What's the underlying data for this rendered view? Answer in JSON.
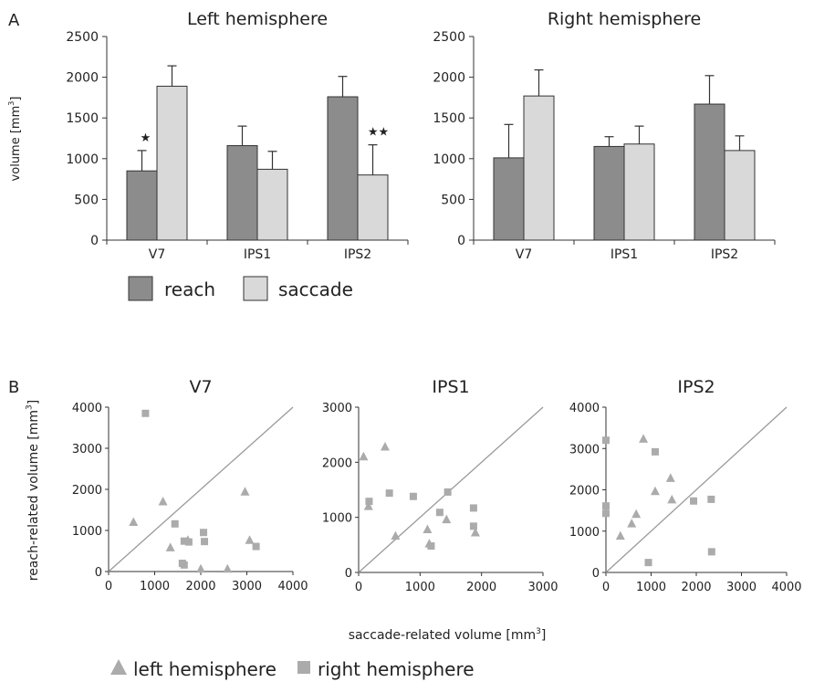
{
  "panel_labels": {
    "a": "A",
    "b": "B"
  },
  "colors": {
    "reach": "#8c8c8c",
    "saccade": "#d9d9d9",
    "marker": "#ababab",
    "diagonal": "#9a9a9a",
    "axis": "#333333"
  },
  "legend_a": {
    "reach": "reach",
    "saccade": "saccade"
  },
  "legend_b": {
    "left": "left hemisphere",
    "right": "right hemisphere",
    "left_icon": "triangle-icon",
    "right_icon": "square-icon"
  },
  "shared_xlabel": {
    "text": "saccade-related volume [mm",
    "sup": "3",
    "end": "]"
  },
  "chart_data": [
    {
      "id": "left-hemisphere",
      "type": "bar",
      "title": "Left hemisphere",
      "ylabel": {
        "text": "volume [mm",
        "sup": "3",
        "end": "]"
      },
      "ylim": [
        0,
        2500
      ],
      "yticks": [
        0,
        500,
        1000,
        1500,
        2000,
        2500
      ],
      "categories": [
        "V7",
        "IPS1",
        "IPS2"
      ],
      "series": [
        {
          "name": "reach",
          "values": [
            850,
            1160,
            1760
          ],
          "errors": [
            250,
            240,
            250
          ]
        },
        {
          "name": "saccade",
          "values": [
            1890,
            870,
            800
          ],
          "errors": [
            250,
            220,
            370
          ]
        }
      ],
      "annotations": [
        {
          "category": "V7",
          "series": "reach",
          "text": "★"
        },
        {
          "category": "IPS2",
          "series": "saccade",
          "text": "★★"
        }
      ]
    },
    {
      "id": "right-hemisphere",
      "type": "bar",
      "title": "Right hemisphere",
      "ylim": [
        0,
        2500
      ],
      "yticks": [
        0,
        500,
        1000,
        1500,
        2000,
        2500
      ],
      "categories": [
        "V7",
        "IPS1",
        "IPS2"
      ],
      "series": [
        {
          "name": "reach",
          "values": [
            1010,
            1150,
            1670
          ],
          "errors": [
            410,
            120,
            350
          ]
        },
        {
          "name": "saccade",
          "values": [
            1770,
            1180,
            1100
          ],
          "errors": [
            320,
            220,
            180
          ]
        }
      ]
    },
    {
      "id": "scatter-v7",
      "type": "scatter",
      "title": "V7",
      "ylabel": {
        "text": "reach-related volume [mm",
        "sup": "3",
        "end": "]"
      },
      "xlim": [
        0,
        4000
      ],
      "ylim": [
        0,
        4000
      ],
      "xticks": [
        0,
        1000,
        2000,
        3000,
        4000
      ],
      "yticks": [
        0,
        1000,
        2000,
        3000,
        4000
      ],
      "diagonal": true,
      "series": [
        {
          "name": "left hemisphere",
          "marker": "triangle",
          "points": [
            [
              540,
              1200
            ],
            [
              1180,
              1700
            ],
            [
              1340,
              580
            ],
            [
              1720,
              760
            ],
            [
              2000,
              60
            ],
            [
              2580,
              60
            ],
            [
              2960,
              1940
            ],
            [
              3060,
              760
            ]
          ]
        },
        {
          "name": "right hemisphere",
          "marker": "square",
          "points": [
            [
              800,
              3850
            ],
            [
              1440,
              1160
            ],
            [
              1600,
              200
            ],
            [
              1640,
              160
            ],
            [
              1640,
              740
            ],
            [
              1740,
              720
            ],
            [
              2060,
              950
            ],
            [
              2080,
              730
            ],
            [
              3200,
              610
            ]
          ]
        }
      ]
    },
    {
      "id": "scatter-ips1",
      "type": "scatter",
      "title": "IPS1",
      "xlim": [
        0,
        3000
      ],
      "ylim": [
        0,
        3000
      ],
      "xticks": [
        0,
        1000,
        2000,
        3000
      ],
      "yticks": [
        0,
        1000,
        2000,
        3000
      ],
      "diagonal": true,
      "series": [
        {
          "name": "left hemisphere",
          "marker": "triangle",
          "points": [
            [
              80,
              2100
            ],
            [
              160,
              1200
            ],
            [
              430,
              2280
            ],
            [
              600,
              660
            ],
            [
              1120,
              780
            ],
            [
              1150,
              520
            ],
            [
              1430,
              960
            ],
            [
              1900,
              720
            ]
          ]
        },
        {
          "name": "right hemisphere",
          "marker": "square",
          "points": [
            [
              170,
              1290
            ],
            [
              500,
              1440
            ],
            [
              890,
              1380
            ],
            [
              1180,
              480
            ],
            [
              1320,
              1090
            ],
            [
              1450,
              1460
            ],
            [
              1870,
              1170
            ],
            [
              1870,
              840
            ]
          ]
        }
      ]
    },
    {
      "id": "scatter-ips2",
      "type": "scatter",
      "title": "IPS2",
      "xlim": [
        0,
        4000
      ],
      "ylim": [
        0,
        4000
      ],
      "xticks": [
        0,
        1000,
        2000,
        3000,
        4000
      ],
      "yticks": [
        0,
        1000,
        2000,
        3000,
        4000
      ],
      "diagonal": true,
      "series": [
        {
          "name": "left hemisphere",
          "marker": "triangle",
          "points": [
            [
              320,
              880
            ],
            [
              570,
              1180
            ],
            [
              670,
              1410
            ],
            [
              830,
              3230
            ],
            [
              1090,
              1960
            ],
            [
              1430,
              2280
            ],
            [
              1460,
              1760
            ]
          ]
        },
        {
          "name": "right hemisphere",
          "marker": "square",
          "points": [
            [
              0,
              3200
            ],
            [
              0,
              1610
            ],
            [
              0,
              1430
            ],
            [
              940,
              240
            ],
            [
              1090,
              2920
            ],
            [
              1940,
              1730
            ],
            [
              2330,
              1770
            ],
            [
              2340,
              500
            ]
          ]
        }
      ]
    }
  ]
}
